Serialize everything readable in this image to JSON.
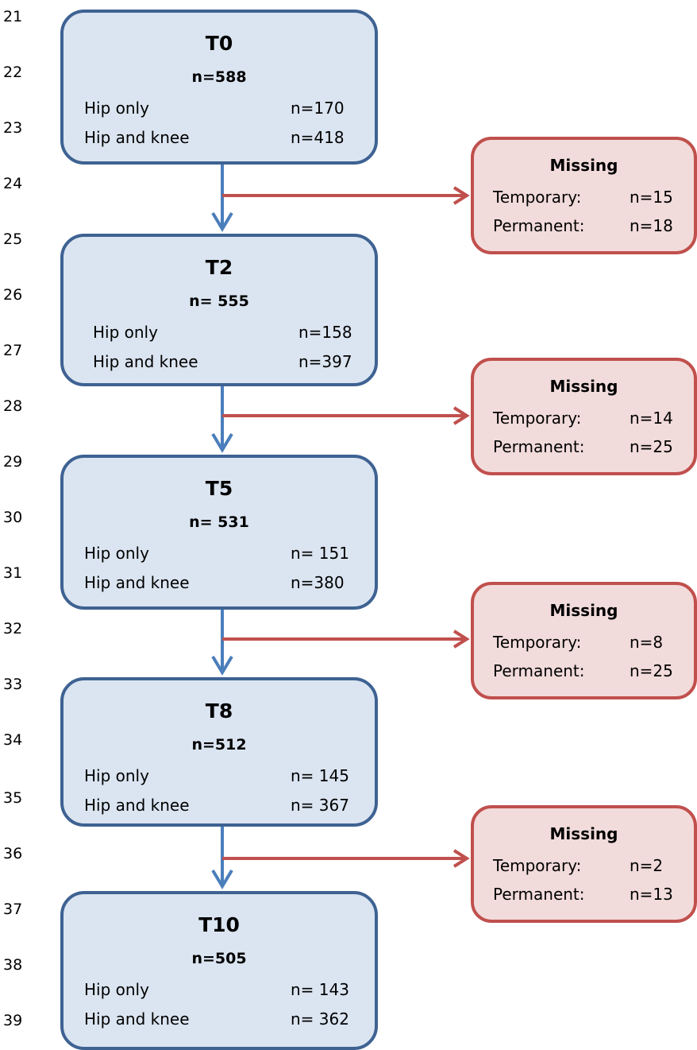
{
  "line_numbers": [
    "21",
    "22",
    "23",
    "24",
    "25",
    "26",
    "27",
    "28",
    "29",
    "30",
    "31",
    "32",
    "33",
    "34",
    "35",
    "36",
    "37",
    "38",
    "39"
  ],
  "timepoints": [
    {
      "label": "T0",
      "total": "n=588",
      "rows": [
        {
          "label": "Hip only",
          "value": "n=170"
        },
        {
          "label": "Hip and knee",
          "value": "n=418"
        }
      ]
    },
    {
      "label": "T2",
      "total": "n= 555",
      "rows": [
        {
          "label": "Hip only",
          "value": "n=158"
        },
        {
          "label": "Hip and knee",
          "value": "n=397"
        }
      ]
    },
    {
      "label": "T5",
      "total": "n= 531",
      "rows": [
        {
          "label": "Hip only",
          "value": "n= 151"
        },
        {
          "label": "Hip and knee",
          "value": "n=380"
        }
      ]
    },
    {
      "label": "T8",
      "total": "n=512",
      "rows": [
        {
          "label": "Hip only",
          "value": "n= 145"
        },
        {
          "label": "Hip and knee",
          "value": "n= 367"
        }
      ]
    },
    {
      "label": "T10",
      "total": "n=505",
      "rows": [
        {
          "label": "Hip only",
          "value": "n= 143"
        },
        {
          "label": "Hip and knee",
          "value": "n= 362"
        }
      ]
    }
  ],
  "missing": [
    {
      "title": "Missing",
      "rows": [
        {
          "label": "Temporary:",
          "value": "n=15"
        },
        {
          "label": "Permanent:",
          "value": "n=18"
        }
      ]
    },
    {
      "title": "Missing",
      "rows": [
        {
          "label": "Temporary:",
          "value": "n=14"
        },
        {
          "label": "Permanent:",
          "value": "n=25"
        }
      ]
    },
    {
      "title": "Missing",
      "rows": [
        {
          "label": "Temporary:",
          "value": "n=8"
        },
        {
          "label": "Permanent:",
          "value": "n=25"
        }
      ]
    },
    {
      "title": "Missing",
      "rows": [
        {
          "label": "Temporary:",
          "value": "n=2"
        },
        {
          "label": "Permanent:",
          "value": "n=13"
        }
      ]
    }
  ],
  "colors": {
    "timepoint_fill": "#dbe5f1",
    "timepoint_border": "#3e6292",
    "flow_arrow": "#4a7ebb",
    "missing_fill": "#f2dbdb",
    "missing_border": "#c0504d"
  }
}
